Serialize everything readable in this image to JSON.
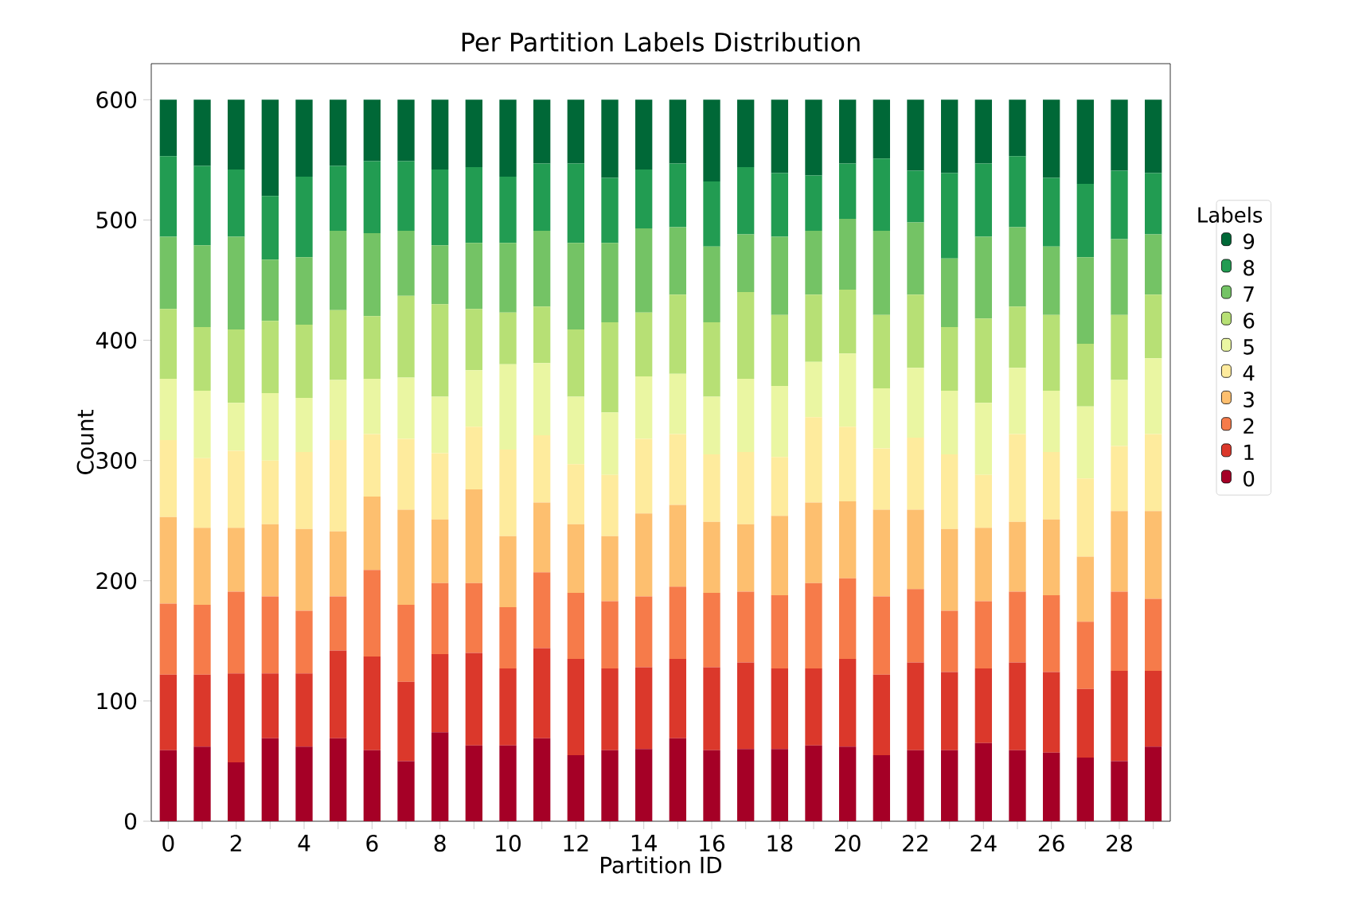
{
  "chart_data": {
    "type": "bar",
    "stacked": true,
    "title": "Per Partition Labels Distribution",
    "xlabel": "Partition ID",
    "ylabel": "Count",
    "legend_title": "Labels",
    "legend": "right",
    "categories": [
      "0",
      null,
      "2",
      null,
      "4",
      null,
      "6",
      null,
      "8",
      null,
      "10",
      null,
      "12",
      null,
      "14",
      null,
      "16",
      null,
      "18",
      null,
      "20",
      null,
      "22",
      null,
      "24",
      null,
      "26",
      null,
      "28",
      null
    ],
    "ylim": [
      0,
      630
    ],
    "yticks": [
      0,
      100,
      200,
      300,
      400,
      500,
      600
    ],
    "series": [
      {
        "name": "0",
        "color": "#a50026",
        "values": [
          59,
          62,
          49,
          69,
          62,
          69,
          59,
          50,
          74,
          63,
          63,
          69,
          55,
          59,
          60,
          69,
          59,
          60,
          60,
          63,
          62,
          55,
          59,
          59,
          65,
          59,
          57,
          53,
          50,
          62
        ]
      },
      {
        "name": "1",
        "color": "#db382b",
        "values": [
          63,
          60,
          74,
          54,
          61,
          73,
          78,
          66,
          65,
          77,
          64,
          75,
          80,
          68,
          68,
          66,
          69,
          72,
          67,
          64,
          73,
          67,
          73,
          65,
          62,
          73,
          67,
          57,
          75,
          63
        ]
      },
      {
        "name": "2",
        "color": "#f67b4a",
        "values": [
          59,
          58,
          68,
          64,
          52,
          45,
          72,
          64,
          59,
          58,
          51,
          63,
          55,
          56,
          59,
          60,
          62,
          59,
          61,
          71,
          67,
          65,
          61,
          51,
          56,
          59,
          64,
          56,
          66,
          60
        ]
      },
      {
        "name": "3",
        "color": "#fdbf6f",
        "values": [
          72,
          64,
          53,
          60,
          68,
          54,
          61,
          79,
          53,
          78,
          59,
          58,
          57,
          54,
          69,
          68,
          59,
          56,
          66,
          67,
          64,
          72,
          66,
          68,
          61,
          58,
          63,
          54,
          67,
          73
        ]
      },
      {
        "name": "4",
        "color": "#feeb9d",
        "values": [
          64,
          58,
          64,
          53,
          64,
          76,
          52,
          59,
          55,
          52,
          72,
          56,
          50,
          51,
          62,
          59,
          56,
          60,
          49,
          71,
          62,
          51,
          60,
          62,
          44,
          73,
          56,
          65,
          54,
          64
        ]
      },
      {
        "name": "5",
        "color": "#eaf6a2",
        "values": [
          51,
          56,
          40,
          56,
          45,
          50,
          46,
          51,
          47,
          47,
          71,
          60,
          56,
          52,
          52,
          50,
          48,
          61,
          59,
          46,
          61,
          50,
          58,
          53,
          60,
          55,
          51,
          60,
          55,
          63
        ]
      },
      {
        "name": "6",
        "color": "#b7e075",
        "values": [
          58,
          53,
          61,
          60,
          61,
          58,
          52,
          68,
          77,
          51,
          43,
          47,
          56,
          75,
          53,
          66,
          62,
          72,
          59,
          56,
          53,
          61,
          61,
          53,
          70,
          51,
          63,
          52,
          54,
          53
        ]
      },
      {
        "name": "7",
        "color": "#74c365",
        "values": [
          60,
          68,
          77,
          51,
          56,
          66,
          69,
          54,
          49,
          55,
          58,
          63,
          72,
          66,
          70,
          56,
          63,
          48,
          65,
          53,
          59,
          70,
          60,
          57,
          68,
          66,
          57,
          72,
          63,
          50
        ]
      },
      {
        "name": "8",
        "color": "#229c52",
        "values": [
          67,
          66,
          56,
          53,
          67,
          54,
          60,
          58,
          63,
          63,
          55,
          56,
          66,
          54,
          49,
          53,
          54,
          56,
          53,
          46,
          46,
          60,
          43,
          71,
          61,
          59,
          57,
          61,
          57,
          51
        ]
      },
      {
        "name": "9",
        "color": "#006837",
        "values": [
          47,
          55,
          58,
          80,
          64,
          55,
          51,
          51,
          58,
          56,
          64,
          53,
          53,
          65,
          58,
          53,
          68,
          56,
          61,
          63,
          53,
          49,
          59,
          61,
          53,
          47,
          65,
          70,
          59,
          61
        ]
      }
    ]
  }
}
